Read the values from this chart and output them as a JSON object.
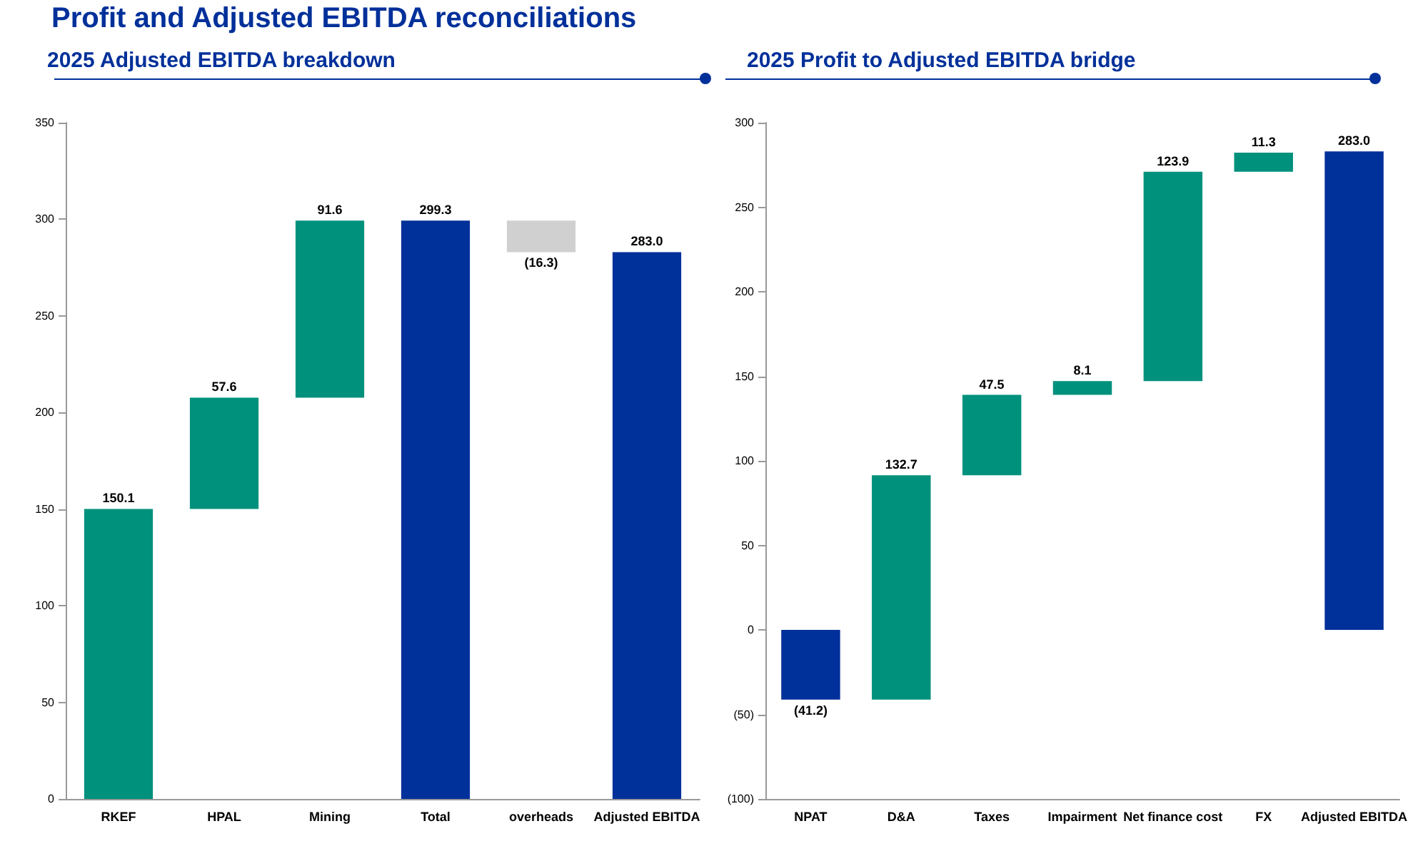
{
  "chart_data": [
    {
      "type": "bar",
      "title": "2025 Adjusted EBITDA breakdown",
      "annotations": [
        "Profit and Adjusted EBITDA reconciliations"
      ],
      "categories": [
        "RKEF",
        "HPAL",
        "Mining",
        "Total",
        "overheads",
        "Adjusted EBITDA"
      ],
      "base": [
        0,
        150.1,
        207.7,
        0,
        299.3,
        0
      ],
      "values": [
        150.1,
        57.6,
        91.6,
        299.3,
        -16.3,
        283.0
      ],
      "colors": [
        "#00917c",
        "#00917c",
        "#00917c",
        "#00309a",
        "#d0d0d0",
        "#00309a"
      ],
      "value_labels": [
        "150.1",
        "57.6",
        "91.6",
        "299.3",
        "(16.3)",
        "283.0"
      ],
      "ylim": [
        0,
        350
      ],
      "yticks": [
        0,
        50,
        100,
        150,
        200,
        250,
        300,
        350
      ],
      "grid": false
    },
    {
      "type": "bar",
      "title": "2025 Profit to Adjusted EBITDA bridge",
      "categories": [
        "NPAT",
        "D&A",
        "Taxes",
        "Impairment",
        "Net finance cost",
        "FX",
        "Adjusted EBITDA"
      ],
      "base": [
        0,
        -41.2,
        91.5,
        139.0,
        147.1,
        271.0,
        0
      ],
      "values": [
        -41.2,
        132.7,
        47.5,
        8.1,
        123.9,
        11.3,
        283.0
      ],
      "colors": [
        "#00309a",
        "#00917c",
        "#00917c",
        "#00917c",
        "#00917c",
        "#00917c",
        "#00309a"
      ],
      "value_labels": [
        "(41.2)",
        "132.7",
        "47.5",
        "8.1",
        "123.9",
        "11.3",
        "283.0"
      ],
      "ylim": [
        -100,
        300
      ],
      "yticks": [
        {
          "value": -100,
          "label": "(100)"
        },
        {
          "value": -50,
          "label": "(50)"
        },
        0,
        50,
        100,
        150,
        200,
        250,
        300
      ],
      "grid": false
    }
  ]
}
